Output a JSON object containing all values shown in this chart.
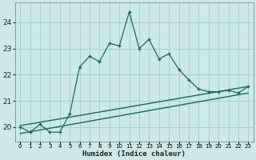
{
  "xlabel": "Humidex (Indice chaleur)",
  "bg_color": "#cce8e8",
  "grid_color": "#aacfcf",
  "line_color": "#1a6b5a",
  "x_values": [
    0,
    1,
    2,
    3,
    4,
    5,
    6,
    7,
    8,
    9,
    10,
    11,
    12,
    13,
    14,
    15,
    16,
    17,
    18,
    19,
    20,
    21,
    22,
    23
  ],
  "y_main": [
    20.0,
    19.8,
    20.1,
    19.8,
    19.8,
    20.5,
    22.3,
    22.7,
    22.5,
    23.2,
    23.1,
    24.4,
    23.0,
    23.35,
    22.6,
    22.8,
    22.2,
    21.8,
    21.45,
    21.35,
    21.35,
    21.4,
    21.3,
    21.55
  ],
  "trend1_start": 20.05,
  "trend1_end": 21.55,
  "trend2_start": 19.75,
  "trend2_end": 21.3,
  "ylim": [
    19.45,
    24.75
  ],
  "yticks": [
    20,
    21,
    22,
    23,
    24
  ],
  "xlim": [
    -0.5,
    23.5
  ],
  "xtick_labels": [
    "0",
    "1",
    "2",
    "3",
    "4",
    "5",
    "6",
    "7",
    "8",
    "9",
    "10",
    "11",
    "12",
    "13",
    "14",
    "15",
    "16",
    "17",
    "18",
    "19",
    "20",
    "21",
    "22",
    "23"
  ]
}
